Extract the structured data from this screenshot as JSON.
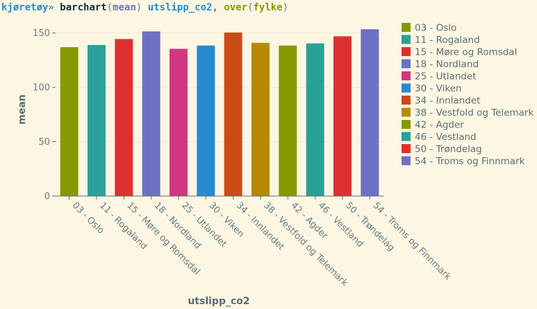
{
  "command": {
    "prompt": "kjøretøy»",
    "func": "barchart",
    "arg": "mean",
    "var": "utslipp_co2",
    "over_kw": "over",
    "over_arg": "fylke"
  },
  "colors": {
    "background": "#fdf6e3",
    "grid": "#eee8d5",
    "axis": "#586e75"
  },
  "chart_data": {
    "type": "bar",
    "xlabel": "utslipp_co2",
    "ylabel": "mean",
    "ylim": [
      0,
      160
    ],
    "yticks": [
      0,
      50,
      100,
      150
    ],
    "grid": true,
    "legend_position": "right",
    "categories": [
      "03 - Oslo",
      "11 - Rogaland",
      "15 - Møre og Romsdal",
      "18 - Nordland",
      "25 - Utlandet",
      "30 - Viken",
      "34 - Innlandet",
      "38 - Vestfold og Telemark",
      "42 - Agder",
      "46 - Vestland",
      "50 - Trøndelag",
      "54 - Troms og Finnmark"
    ],
    "values": [
      137,
      139,
      144.5,
      151.5,
      135.5,
      138.5,
      150.5,
      141,
      138.5,
      140.5,
      147,
      153.5
    ],
    "bar_colors": [
      "#859900",
      "#2aa198",
      "#dc322f",
      "#6c71c4",
      "#d33682",
      "#268bd2",
      "#cb4b16",
      "#b58900",
      "#859900",
      "#2aa198",
      "#dc322f",
      "#6c71c4"
    ]
  }
}
